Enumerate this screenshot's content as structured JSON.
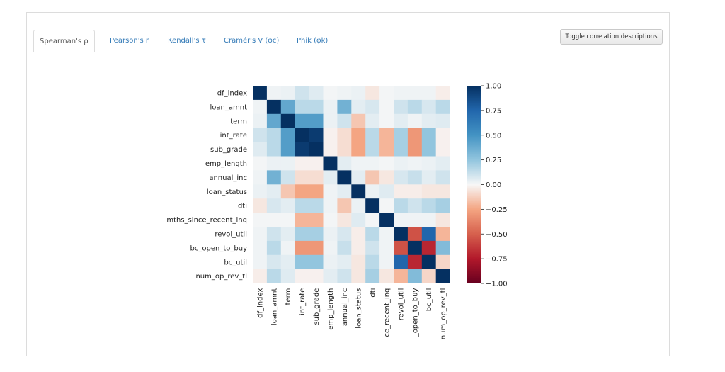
{
  "tabs": [
    {
      "label": "Spearman's ρ",
      "active": true
    },
    {
      "label": "Pearson's r",
      "active": false
    },
    {
      "label": "Kendall's τ",
      "active": false
    },
    {
      "label": "Cramér's V (φc)",
      "active": false
    },
    {
      "label": "Phik (φk)",
      "active": false
    }
  ],
  "toggle_button": {
    "label": "Toggle correlation descriptions"
  },
  "chart_data": {
    "type": "heatmap",
    "colormap": "RdBu",
    "title": "",
    "variables": [
      "df_index",
      "loan_amnt",
      "term",
      "int_rate",
      "sub_grade",
      "emp_length",
      "annual_inc",
      "loan_status",
      "dti",
      "mths_since_recent_inq",
      "revol_util",
      "bc_open_to_buy",
      "bc_util",
      "num_op_rev_tl"
    ],
    "x_tick_labels": [
      "df_index",
      "loan_amnt",
      "term",
      "int_rate",
      "sub_grade",
      "emp_length",
      "annual_inc",
      "loan_status",
      "dti",
      "ce_recent_inq",
      "revol_util",
      "_open_to_buy",
      "bc_util",
      "num_op_rev_tl"
    ],
    "colorbar": {
      "min": -1.0,
      "max": 1.0,
      "ticks": [
        "1.00",
        "0.75",
        "0.50",
        "0.25",
        "0.00",
        "−0.25",
        "−0.50",
        "−0.75",
        "−1.00"
      ]
    },
    "matrix": [
      [
        1.0,
        0.02,
        0.03,
        0.1,
        0.06,
        0.01,
        0.02,
        0.03,
        -0.05,
        0.01,
        0.02,
        0.02,
        0.02,
        -0.03
      ],
      [
        0.02,
        1.0,
        0.4,
        0.15,
        0.15,
        0.03,
        0.35,
        0.05,
        0.08,
        0.01,
        0.1,
        0.15,
        0.08,
        0.15
      ],
      [
        0.03,
        0.4,
        1.0,
        0.45,
        0.45,
        0.03,
        0.1,
        -0.15,
        0.05,
        0.01,
        0.05,
        0.02,
        0.05,
        0.06
      ],
      [
        0.1,
        0.15,
        0.45,
        1.0,
        0.95,
        -0.02,
        -0.08,
        -0.25,
        0.15,
        -0.2,
        0.2,
        -0.3,
        0.25,
        -0.02
      ],
      [
        0.06,
        0.15,
        0.45,
        0.95,
        1.0,
        -0.02,
        -0.08,
        -0.25,
        0.15,
        -0.2,
        0.2,
        -0.3,
        0.25,
        -0.02
      ],
      [
        0.01,
        0.03,
        0.03,
        -0.02,
        -0.02,
        1.0,
        0.05,
        0.02,
        0.02,
        0.01,
        0.03,
        0.02,
        0.03,
        0.05
      ],
      [
        0.02,
        0.35,
        0.1,
        -0.08,
        -0.08,
        0.05,
        1.0,
        0.05,
        -0.15,
        -0.05,
        0.08,
        0.12,
        0.05,
        0.1
      ],
      [
        0.03,
        0.05,
        -0.15,
        -0.25,
        -0.25,
        0.02,
        0.05,
        1.0,
        0.03,
        0.06,
        -0.03,
        -0.03,
        -0.05,
        -0.05
      ],
      [
        -0.05,
        0.08,
        0.05,
        0.15,
        0.15,
        0.02,
        -0.15,
        0.03,
        1.0,
        0.01,
        0.15,
        0.1,
        0.15,
        0.2
      ],
      [
        0.01,
        0.01,
        0.01,
        -0.2,
        -0.2,
        0.01,
        -0.05,
        0.06,
        0.01,
        1.0,
        0.02,
        0.02,
        0.02,
        -0.05
      ],
      [
        0.02,
        0.1,
        0.05,
        0.2,
        0.2,
        0.03,
        0.08,
        -0.03,
        0.15,
        0.02,
        1.0,
        -0.55,
        0.75,
        -0.2
      ],
      [
        0.02,
        0.15,
        0.02,
        -0.3,
        -0.3,
        0.02,
        0.12,
        -0.03,
        0.1,
        0.02,
        -0.55,
        1.0,
        -0.7,
        0.3
      ],
      [
        0.02,
        0.08,
        0.05,
        0.25,
        0.25,
        0.03,
        0.05,
        -0.05,
        0.15,
        0.02,
        0.75,
        -0.7,
        1.0,
        -0.1
      ],
      [
        -0.03,
        0.15,
        0.06,
        -0.02,
        -0.02,
        0.05,
        0.1,
        -0.05,
        0.2,
        -0.05,
        -0.2,
        0.3,
        -0.1,
        1.0
      ]
    ]
  }
}
